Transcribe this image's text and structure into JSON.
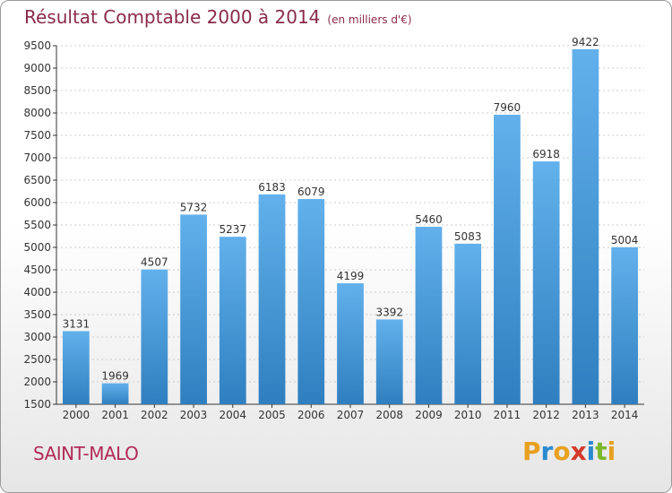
{
  "header": {
    "title": "Résultat Comptable 2000 à 2014",
    "subtitle": "(en milliers d'€)"
  },
  "footer": {
    "location": "SAINT-MALO",
    "brand": "Proxiti",
    "brand_letters": [
      {
        "ch": "P",
        "color": "#e8a020"
      },
      {
        "ch": "r",
        "color": "#2a8ad0"
      },
      {
        "ch": "o",
        "color": "#e8a020"
      },
      {
        "ch": "x",
        "color": "#d23a2a"
      },
      {
        "ch": "i",
        "color": "#2a8ad0"
      },
      {
        "ch": "t",
        "color": "#7ab82a"
      },
      {
        "ch": "i",
        "color": "#e8a020"
      }
    ]
  },
  "colors": {
    "bar_top": "#62b1ec",
    "bar_bottom": "#2f7fc0",
    "axis": "#333333",
    "grid": "#cccccc",
    "text": "#333333"
  },
  "chart_data": {
    "type": "bar",
    "title": "Résultat Comptable 2000 à 2014",
    "subtitle": "(en milliers d'€)",
    "xlabel": "",
    "ylabel": "",
    "categories": [
      "2000",
      "2001",
      "2002",
      "2003",
      "2004",
      "2005",
      "2006",
      "2007",
      "2008",
      "2009",
      "2010",
      "2011",
      "2012",
      "2013",
      "2014"
    ],
    "values": [
      3131,
      1969,
      4507,
      5732,
      5237,
      6183,
      6079,
      4199,
      3392,
      5460,
      5083,
      7960,
      6918,
      9422,
      5004
    ],
    "ylim": [
      1500,
      9500
    ],
    "yticks": [
      1500,
      2000,
      2500,
      3000,
      3500,
      4000,
      4500,
      5000,
      5500,
      6000,
      6500,
      7000,
      7500,
      8000,
      8500,
      9000,
      9500
    ],
    "grid": true,
    "legend": "none"
  }
}
